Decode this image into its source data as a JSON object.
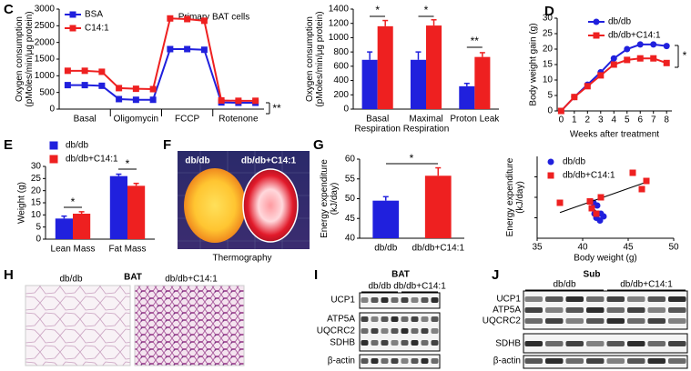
{
  "panel_labels": [
    "C",
    "D",
    "E",
    "F",
    "G",
    "H",
    "I",
    "J"
  ],
  "chart_data": [
    {
      "type": "line",
      "title": "Primary BAT cells",
      "ylabel": [
        "Oxygen consumption",
        "(pMoles/min/μg protein)"
      ],
      "categories": [
        null,
        "Basal",
        null,
        null,
        "Oligomycin",
        null,
        null,
        "FCCP",
        null,
        null,
        "Rotenone",
        null
      ],
      "series": [
        {
          "name": "BSA",
          "color": "#2020dd",
          "marker": "square",
          "values": [
            720,
            720,
            700,
            300,
            280,
            280,
            1800,
            1800,
            1780,
            200,
            190,
            190
          ]
        },
        {
          "name": "C14:1",
          "color": "#ee2020",
          "marker": "square",
          "values": [
            1150,
            1150,
            1120,
            630,
            610,
            600,
            2720,
            2700,
            2650,
            260,
            250,
            250
          ]
        }
      ],
      "ylim": [
        0,
        3000
      ],
      "yticks": [
        0,
        500,
        1000,
        1500,
        2000,
        2500,
        3000
      ],
      "legend": "upper left",
      "annotations": [
        "**"
      ]
    },
    {
      "type": "bar",
      "ylabel": [
        "Oxygen consumption",
        "(pMoles/min/μg protein)"
      ],
      "categories": [
        [
          "Basal",
          "Respiration"
        ],
        [
          "Maximal",
          "Respiration"
        ],
        "Proton Leak"
      ],
      "series": [
        {
          "color": "#2020dd",
          "values": [
            690,
            690,
            320
          ],
          "errors": [
            110,
            110,
            40
          ]
        },
        {
          "color": "#ee2020",
          "values": [
            1160,
            1170,
            730
          ],
          "errors": [
            80,
            80,
            60
          ]
        }
      ],
      "ylim": [
        0,
        1400
      ],
      "yticks": [
        0,
        200,
        400,
        600,
        800,
        1000,
        1200,
        1400
      ],
      "annotations": [
        "*",
        "*",
        "**"
      ]
    },
    {
      "type": "line",
      "ylabel": "Body weight gain (g)",
      "xlabel": "Weeks after treatment",
      "x": [
        0,
        1,
        2,
        3,
        4,
        5,
        6,
        7,
        8
      ],
      "series": [
        {
          "name": "db/db",
          "color": "#2020dd",
          "marker": "circle",
          "values": [
            0,
            4.5,
            8.5,
            12.5,
            17,
            20,
            21.5,
            21.5,
            21
          ]
        },
        {
          "name": "db/db+C14:1",
          "color": "#ee2020",
          "marker": "square",
          "values": [
            0,
            4.5,
            8,
            11.5,
            15,
            16.5,
            17,
            17,
            15.5
          ]
        }
      ],
      "xlim": [
        -0.3,
        8.4
      ],
      "xticks": [
        0,
        1,
        2,
        3,
        4,
        5,
        6,
        7,
        8
      ],
      "ylim": [
        0,
        30
      ],
      "yticks": [
        0,
        5,
        10,
        15,
        20,
        25,
        30
      ],
      "legend": "upper left",
      "annotations": [
        "*"
      ]
    },
    {
      "type": "bar",
      "ylabel": "Weight (g)",
      "categories": [
        "Lean Mass",
        "Fat Mass"
      ],
      "series": [
        {
          "name": "db/db",
          "color": "#2020dd",
          "values": [
            8.5,
            26
          ],
          "errors": [
            1,
            0.8
          ]
        },
        {
          "name": "db/db+C14:1",
          "color": "#ee2020",
          "values": [
            10.5,
            22
          ],
          "errors": [
            0.8,
            1
          ]
        }
      ],
      "ylim": [
        0,
        30
      ],
      "yticks": [
        0,
        5,
        10,
        15,
        20,
        25,
        30
      ],
      "legend": "upper left",
      "annotations": [
        "*",
        "*"
      ]
    },
    {
      "type": "bar",
      "ylabel": [
        "Energy expenditure",
        "(kJ/day)"
      ],
      "categories": [
        "db/db",
        "db/db+C14:1"
      ],
      "values": [
        49.5,
        55.8
      ],
      "errors": [
        1,
        2
      ],
      "colors": [
        "#2020dd",
        "#ee2020"
      ],
      "ylim": [
        40,
        60
      ],
      "yticks": [
        40,
        45,
        50,
        55,
        60
      ],
      "annotations": [
        "*"
      ]
    },
    {
      "type": "scatter",
      "ylabel": [
        "Energy expenditure",
        "(kJ/day)"
      ],
      "xlabel": "Body weight (g)",
      "series": [
        {
          "name": "db/db",
          "color": "#2020dd",
          "marker": "circle",
          "x": [
            41.2,
            41.6,
            42,
            41.5,
            41.9,
            42.3,
            41.3
          ],
          "values": [
            53,
            52,
            49,
            47.5,
            46.5,
            48,
            49
          ]
        },
        {
          "name": "db/db+C14:1",
          "color": "#ee2020",
          "marker": "square",
          "x": [
            37.5,
            40.8,
            41,
            42,
            45.5,
            46.5,
            47,
            41.5
          ],
          "values": [
            53,
            53.5,
            51,
            55,
            64,
            58,
            61,
            49
          ]
        }
      ],
      "xlim": [
        35,
        50
      ],
      "xticks": [
        35,
        40,
        45,
        50
      ],
      "ylim": [
        40,
        70
      ],
      "legend": "upper left",
      "trendline": true
    }
  ],
  "thermography": {
    "labels": [
      "db/db",
      "db/db+C14:1"
    ],
    "caption": "Thermography"
  },
  "histology": {
    "labels": [
      "db/db",
      "BAT",
      "db/db+C14:1"
    ]
  },
  "blots": [
    {
      "title": "BAT",
      "groups": [
        "db/db",
        "db/db+C14:1"
      ],
      "rows": [
        "UCP1",
        "ATP5A",
        "UQCRC2",
        "SDHB",
        "β-actin"
      ]
    },
    {
      "title": "Sub",
      "groups": [
        "db/db",
        "db/db+C14:1"
      ],
      "rows": [
        "UCP1",
        "ATP5A",
        "UQCRC2",
        "SDHB",
        "β-actin"
      ]
    }
  ]
}
